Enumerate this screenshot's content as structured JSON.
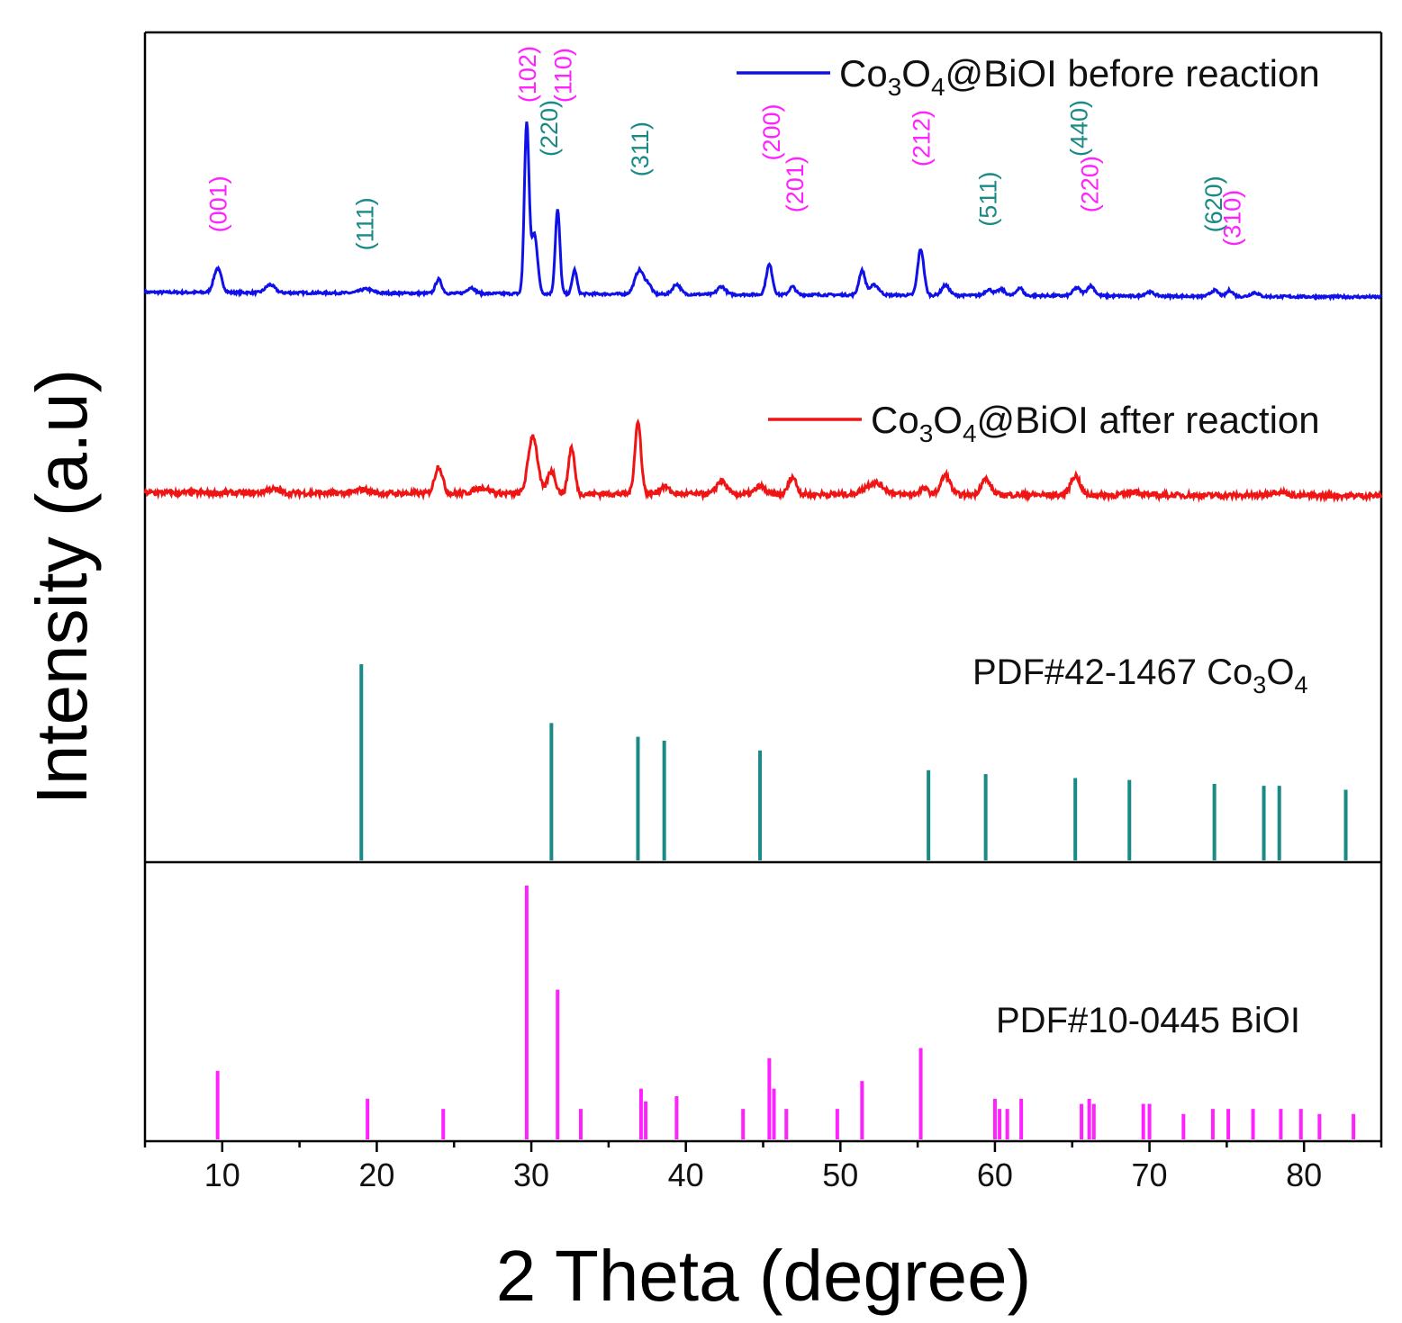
{
  "chart_data": {
    "type": "line",
    "title": "",
    "xlabel": "2 Theta (degree)",
    "ylabel": "Intensity (a.u)",
    "xlim": [
      5,
      85
    ],
    "xticks": [
      10,
      20,
      30,
      40,
      50,
      60,
      70,
      80
    ],
    "colors": {
      "before": "#1010e8",
      "after": "#f01515",
      "co3o4": "#1a8a86",
      "bioi": "#ff22ff",
      "axis": "#000000"
    },
    "series": [
      {
        "name": "Co3O4@BiOI before reaction",
        "legend_main": "Co",
        "legend_sub1": "3",
        "legend_mid": "O",
        "legend_sub2": "4",
        "legend_rest": "@BiOI before reaction",
        "color_key": "before",
        "baseline": 0.06,
        "peaks": [
          [
            9.7,
            0.12,
            0.25
          ],
          [
            13.1,
            0.04,
            0.3
          ],
          [
            19.3,
            0.02,
            0.4
          ],
          [
            24.0,
            0.07,
            0.2
          ],
          [
            26.1,
            0.03,
            0.25
          ],
          [
            29.7,
            0.85,
            0.15
          ],
          [
            30.2,
            0.3,
            0.2
          ],
          [
            31.7,
            0.42,
            0.15
          ],
          [
            32.8,
            0.12,
            0.15
          ],
          [
            37.0,
            0.12,
            0.3
          ],
          [
            37.6,
            0.04,
            0.2
          ],
          [
            39.4,
            0.05,
            0.25
          ],
          [
            42.3,
            0.04,
            0.25
          ],
          [
            45.4,
            0.15,
            0.2
          ],
          [
            46.9,
            0.04,
            0.2
          ],
          [
            51.4,
            0.12,
            0.2
          ],
          [
            52.2,
            0.05,
            0.3
          ],
          [
            55.2,
            0.23,
            0.2
          ],
          [
            56.8,
            0.05,
            0.25
          ],
          [
            59.6,
            0.03,
            0.25
          ],
          [
            60.4,
            0.03,
            0.25
          ],
          [
            61.6,
            0.04,
            0.2
          ],
          [
            65.3,
            0.04,
            0.25
          ],
          [
            66.2,
            0.05,
            0.25
          ],
          [
            70.0,
            0.02,
            0.3
          ],
          [
            74.2,
            0.03,
            0.25
          ],
          [
            75.2,
            0.03,
            0.2
          ],
          [
            76.8,
            0.02,
            0.25
          ]
        ]
      },
      {
        "name": "Co3O4@BiOI after reaction",
        "legend_main": "Co",
        "legend_sub1": "3",
        "legend_mid": "O",
        "legend_sub2": "4",
        "legend_rest": "@BiOI after reaction",
        "color_key": "after",
        "baseline": 0.04,
        "peaks": [
          [
            13.2,
            0.02,
            0.4
          ],
          [
            19.1,
            0.02,
            0.4
          ],
          [
            24.0,
            0.14,
            0.25
          ],
          [
            26.8,
            0.03,
            0.5
          ],
          [
            30.1,
            0.3,
            0.3
          ],
          [
            31.3,
            0.12,
            0.25
          ],
          [
            32.6,
            0.24,
            0.2
          ],
          [
            36.9,
            0.37,
            0.2
          ],
          [
            38.6,
            0.04,
            0.3
          ],
          [
            42.3,
            0.07,
            0.3
          ],
          [
            44.8,
            0.04,
            0.3
          ],
          [
            46.9,
            0.09,
            0.25
          ],
          [
            52.2,
            0.06,
            0.6
          ],
          [
            55.4,
            0.03,
            0.3
          ],
          [
            56.8,
            0.1,
            0.3
          ],
          [
            59.4,
            0.08,
            0.3
          ],
          [
            65.2,
            0.1,
            0.3
          ],
          [
            69.0,
            0.02,
            0.4
          ],
          [
            78.3,
            0.02,
            0.5
          ]
        ]
      }
    ],
    "references": [
      {
        "name": "PDF#42-1467 Co3O4",
        "label_prefix": "PDF#42-1467 Co",
        "label_sub1": "3",
        "label_mid": "O",
        "label_sub2": "4",
        "color_key": "co3o4",
        "positions": [
          19.0,
          31.3,
          36.9,
          38.6,
          44.8,
          55.7,
          59.4,
          65.2,
          68.7,
          74.2,
          77.4,
          78.4,
          82.7
        ],
        "intensities": [
          100,
          70,
          63,
          61,
          56,
          46,
          44,
          42,
          41,
          39,
          38,
          38,
          36
        ]
      },
      {
        "name": "PDF#10-0445 BiOI",
        "label": "PDF#10-0445 BiOI",
        "color_key": "bioi",
        "positions": [
          9.7,
          19.4,
          24.3,
          29.7,
          31.7,
          33.2,
          37.1,
          37.4,
          39.4,
          43.7,
          45.4,
          45.7,
          46.5,
          49.8,
          51.4,
          55.2,
          60.0,
          60.3,
          60.8,
          61.7,
          65.6,
          66.1,
          66.4,
          69.6,
          70.0,
          72.2,
          74.1,
          75.1,
          76.7,
          78.5,
          79.8,
          81.0,
          83.2
        ],
        "intensities": [
          27,
          16,
          12,
          100,
          59,
          12,
          20,
          15,
          17,
          12,
          32,
          20,
          12,
          12,
          23,
          36,
          16,
          12,
          12,
          16,
          14,
          16,
          14,
          14,
          14,
          10,
          12,
          12,
          12,
          12,
          12,
          10,
          10
        ]
      }
    ],
    "annotations": [
      {
        "text": "(001)",
        "x": 9.7,
        "level": 0.3,
        "color_key": "bioi"
      },
      {
        "text": "(111)",
        "x": 19.2,
        "level": 0.21,
        "color_key": "co3o4"
      },
      {
        "text": "(102)",
        "x": 29.7,
        "level": 0.95,
        "color_key": "bioi"
      },
      {
        "text": "(220)",
        "x": 31.1,
        "level": 0.68,
        "color_key": "co3o4"
      },
      {
        "text": "(110)",
        "x": 32.0,
        "level": 0.95,
        "color_key": "bioi"
      },
      {
        "text": "(311)",
        "x": 37.0,
        "level": 0.58,
        "color_key": "co3o4"
      },
      {
        "text": "(200)",
        "x": 45.5,
        "level": 0.66,
        "color_key": "bioi"
      },
      {
        "text": "(201)",
        "x": 47.0,
        "level": 0.4,
        "color_key": "bioi"
      },
      {
        "text": "(212)",
        "x": 55.2,
        "level": 0.63,
        "color_key": "bioi"
      },
      {
        "text": "(511)",
        "x": 59.5,
        "level": 0.33,
        "color_key": "co3o4"
      },
      {
        "text": "(440)",
        "x": 65.4,
        "level": 0.68,
        "color_key": "co3o4"
      },
      {
        "text": "(220)",
        "x": 66.1,
        "level": 0.4,
        "color_key": "bioi"
      },
      {
        "text": "(620)",
        "x": 74.1,
        "level": 0.3,
        "color_key": "co3o4"
      },
      {
        "text": "(310)",
        "x": 75.3,
        "level": 0.23,
        "color_key": "bioi"
      }
    ],
    "grid": false,
    "legend": "top-right"
  }
}
